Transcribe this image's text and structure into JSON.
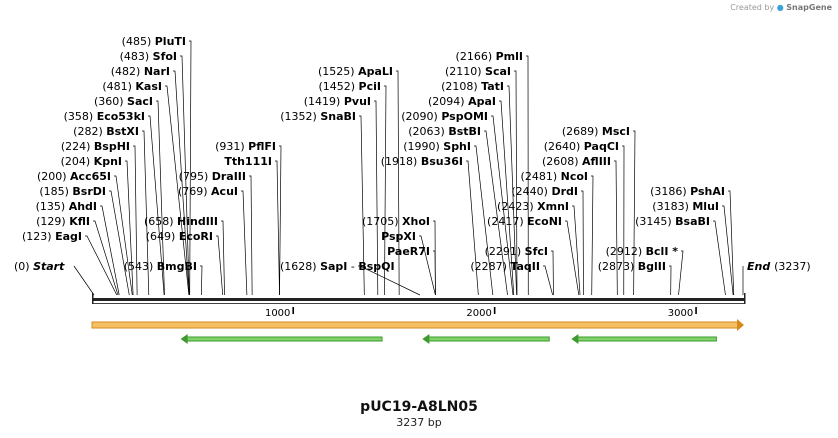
{
  "watermark": {
    "prefix": "Created by",
    "brand": "SnapGene"
  },
  "plasmid": {
    "name": "pUC19-A8LN05",
    "length_label": "3237 bp",
    "length_bp": 3237
  },
  "ruler_ticks": [
    {
      "bp": 1000,
      "label": "1000"
    },
    {
      "bp": 2000,
      "label": "2000"
    },
    {
      "bp": 3000,
      "label": "3000"
    }
  ],
  "features": [
    {
      "kind": "orange-arrow",
      "start": 0,
      "end": 3237,
      "direction": "forward"
    },
    {
      "kind": "green-arrow",
      "start": 440,
      "end": 1440,
      "direction": "reverse"
    },
    {
      "kind": "green-arrow",
      "start": 1640,
      "end": 2270,
      "direction": "reverse"
    },
    {
      "kind": "green-arrow",
      "start": 2380,
      "end": 3100,
      "direction": "reverse"
    }
  ],
  "sites": [
    {
      "pos": "(485)",
      "name": "PluTI",
      "bp": 485,
      "row": 0
    },
    {
      "pos": "(483)",
      "name": "SfoI",
      "bp": 483,
      "row": 1
    },
    {
      "pos": "(482)",
      "name": "NarI",
      "bp": 482,
      "row": 2
    },
    {
      "pos": "(481)",
      "name": "KasI",
      "bp": 481,
      "row": 3
    },
    {
      "pos": "(360)",
      "name": "SacI",
      "bp": 360,
      "row": 4
    },
    {
      "pos": "(358)",
      "name": "Eco53kI",
      "bp": 358,
      "row": 5
    },
    {
      "pos": "(282)",
      "name": "BstXI",
      "bp": 282,
      "row": 6
    },
    {
      "pos": "(224)",
      "name": "BspHI",
      "bp": 224,
      "row": 7
    },
    {
      "pos": "(204)",
      "name": "KpnI",
      "bp": 204,
      "row": 8
    },
    {
      "pos": "(200)",
      "name": "Acc65I",
      "bp": 200,
      "row": 9
    },
    {
      "pos": "(185)",
      "name": "BsrDI",
      "bp": 185,
      "row": 10
    },
    {
      "pos": "(135)",
      "name": "AhdI",
      "bp": 135,
      "row": 11
    },
    {
      "pos": "(129)",
      "name": "KflI",
      "bp": 129,
      "row": 12
    },
    {
      "pos": "(123)",
      "name": "EagI",
      "bp": 123,
      "row": 13
    },
    {
      "pos": "(795)",
      "name": "DraIII",
      "bp": 795,
      "row": 9
    },
    {
      "pos": "(769)",
      "name": "AcuI",
      "bp": 769,
      "row": 10
    },
    {
      "pos": "(658)",
      "name": "HindIII",
      "bp": 658,
      "row": 12
    },
    {
      "pos": "(649)",
      "name": "EcoRI",
      "bp": 649,
      "row": 13
    },
    {
      "pos": "(543)",
      "name": "BmgBI",
      "bp": 543,
      "row": 15
    },
    {
      "pos": "(931)",
      "name": "PflFI",
      "bp": 931,
      "row": 7
    },
    {
      "pos": "",
      "name": "Tth111I",
      "bp": 931,
      "row": 8
    },
    {
      "pos": "(1525)",
      "name": "ApaLI",
      "bp": 1525,
      "row": 2
    },
    {
      "pos": "(1452)",
      "name": "PciI",
      "bp": 1452,
      "row": 3
    },
    {
      "pos": "(1419)",
      "name": "PvuI",
      "bp": 1419,
      "row": 4
    },
    {
      "pos": "(1352)",
      "name": "SnaBI",
      "bp": 1352,
      "row": 5
    },
    {
      "pos": "(1918)",
      "name": "Bsu36I",
      "bp": 1918,
      "row": 8
    },
    {
      "pos": "(1705)",
      "name": "XhoI",
      "bp": 1705,
      "row": 12
    },
    {
      "pos": "",
      "name": "PspXI",
      "bp": 1705,
      "row": 13
    },
    {
      "pos": "",
      "name": "PaeR7I",
      "bp": 1705,
      "row": 14
    },
    {
      "pos": "(1628)",
      "name": "SapI",
      "bp": 1628,
      "row": 15,
      "dash": true,
      "extra_name": "BspQI"
    },
    {
      "pos": "(2166)",
      "name": "PmlI",
      "bp": 2166,
      "row": 1
    },
    {
      "pos": "(2110)",
      "name": "ScaI",
      "bp": 2110,
      "row": 2
    },
    {
      "pos": "(2108)",
      "name": "TatI",
      "bp": 2108,
      "row": 3
    },
    {
      "pos": "(2094)",
      "name": "ApaI",
      "bp": 2094,
      "row": 4
    },
    {
      "pos": "(2090)",
      "name": "PspOMI",
      "bp": 2090,
      "row": 5
    },
    {
      "pos": "(2063)",
      "name": "BstBI",
      "bp": 2063,
      "row": 6
    },
    {
      "pos": "(1990)",
      "name": "SphI",
      "bp": 1990,
      "row": 7
    },
    {
      "pos": "(2481)",
      "name": "NcoI",
      "bp": 2481,
      "row": 9
    },
    {
      "pos": "(2440)",
      "name": "DrdI",
      "bp": 2440,
      "row": 10
    },
    {
      "pos": "(2423)",
      "name": "XmnI",
      "bp": 2423,
      "row": 11
    },
    {
      "pos": "(2417)",
      "name": "EcoNI",
      "bp": 2417,
      "row": 12
    },
    {
      "pos": "(2291)",
      "name": "SfcI",
      "bp": 2291,
      "row": 14
    },
    {
      "pos": "(2287)",
      "name": "TaqII",
      "bp": 2287,
      "row": 15
    },
    {
      "pos": "(2689)",
      "name": "MscI",
      "bp": 2689,
      "row": 6
    },
    {
      "pos": "(2640)",
      "name": "PaqCI",
      "bp": 2640,
      "row": 7
    },
    {
      "pos": "(2608)",
      "name": "AflIII",
      "bp": 2608,
      "row": 8
    },
    {
      "pos": "(3186)",
      "name": "PshAI",
      "bp": 3186,
      "row": 10
    },
    {
      "pos": "(3183)",
      "name": "MluI",
      "bp": 3183,
      "row": 11
    },
    {
      "pos": "(3145)",
      "name": "BsaBI",
      "bp": 3145,
      "row": 12
    },
    {
      "pos": "(2912)",
      "name": "BclI *",
      "bp": 2912,
      "row": 14
    },
    {
      "pos": "(2873)",
      "name": "BglII",
      "bp": 2873,
      "row": 15
    }
  ],
  "ends": {
    "start": {
      "pos": "(0)",
      "name": "Start"
    },
    "end": {
      "pos": "(3237)",
      "name": "End"
    }
  }
}
